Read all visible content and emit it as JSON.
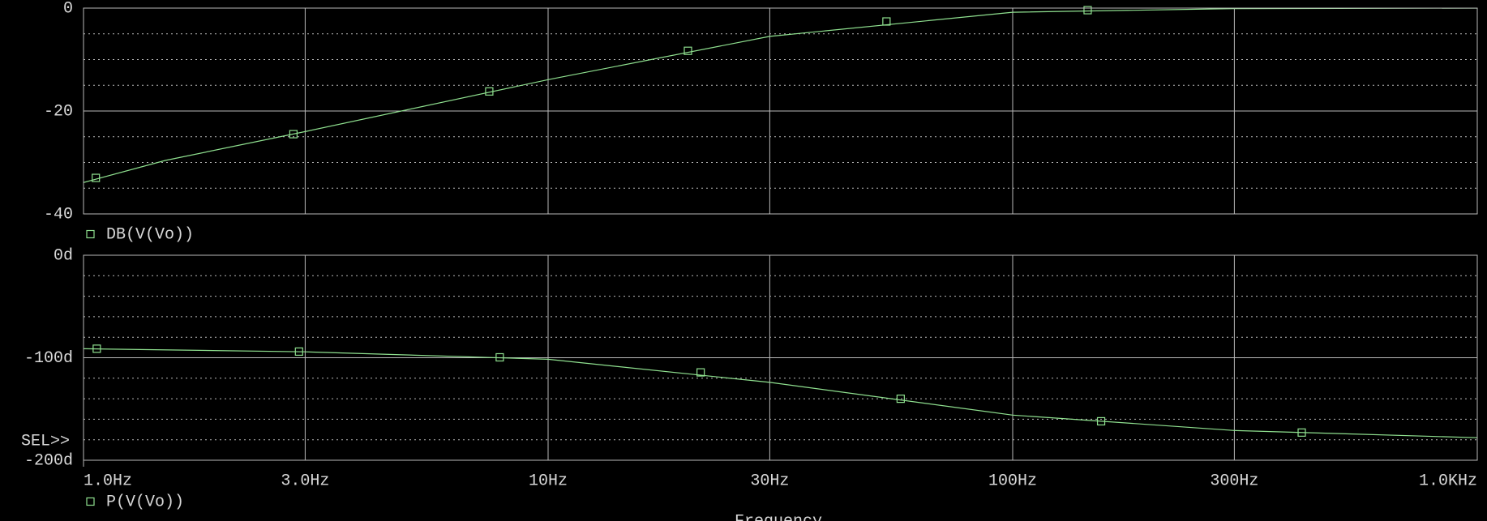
{
  "chart_data": [
    {
      "type": "line",
      "xscale": "log",
      "xlim": [
        1,
        1000
      ],
      "ylim": [
        -40,
        0
      ],
      "yticks": [
        0,
        -20,
        -40
      ],
      "y_minor_ticks": [
        -5,
        -10,
        -15,
        -25,
        -30,
        -35
      ],
      "series": [
        {
          "name": "DB(V(Vo))",
          "color": "#8fe08f",
          "x": [
            1,
            1.5,
            3,
            10,
            30,
            100,
            300,
            1000
          ],
          "values": [
            -33.9,
            -29.6,
            -24.0,
            -13.9,
            -5.5,
            -0.8,
            -0.1,
            0
          ],
          "marker_x": [
            1.063,
            2.83,
            7.47,
            20,
            53.5,
            145
          ],
          "marker_values": [
            -33,
            -24.5,
            -16.2,
            -8.3,
            -2.6,
            -0.4
          ]
        }
      ]
    },
    {
      "type": "line",
      "xscale": "log",
      "xlim": [
        1,
        1000
      ],
      "ylim": [
        -200,
        0
      ],
      "xticks": [
        {
          "value": 1,
          "label": "1.0Hz"
        },
        {
          "value": 3,
          "label": "3.0Hz"
        },
        {
          "value": 10,
          "label": "10Hz"
        },
        {
          "value": 30,
          "label": "30Hz"
        },
        {
          "value": 100,
          "label": "100Hz"
        },
        {
          "value": 300,
          "label": "300Hz"
        },
        {
          "value": 1000,
          "label": "1.0KHz"
        }
      ],
      "yticks": [
        {
          "value": 0,
          "label": "0d"
        },
        {
          "value": -100,
          "label": "-100d"
        },
        {
          "value": -200,
          "label": "-200d"
        }
      ],
      "y_minor_ticks": [
        -20,
        -40,
        -60,
        -80,
        -120,
        -140,
        -160,
        -180
      ],
      "x_label": "Frequency",
      "annotation": "SEL>>",
      "series": [
        {
          "name": "P(V(Vo))",
          "color": "#8fe08f",
          "x": [
            1,
            3,
            10,
            30,
            100,
            300,
            1000
          ],
          "values": [
            -91.2,
            -94.2,
            -101.5,
            -124,
            -156,
            -171,
            -178
          ],
          "marker_x": [
            1.068,
            2.91,
            7.87,
            21.3,
            57.4,
            155,
            419
          ],
          "marker_values": [
            -91.2,
            -94,
            -99.6,
            -114.3,
            -140,
            -162,
            -173
          ]
        }
      ]
    }
  ]
}
